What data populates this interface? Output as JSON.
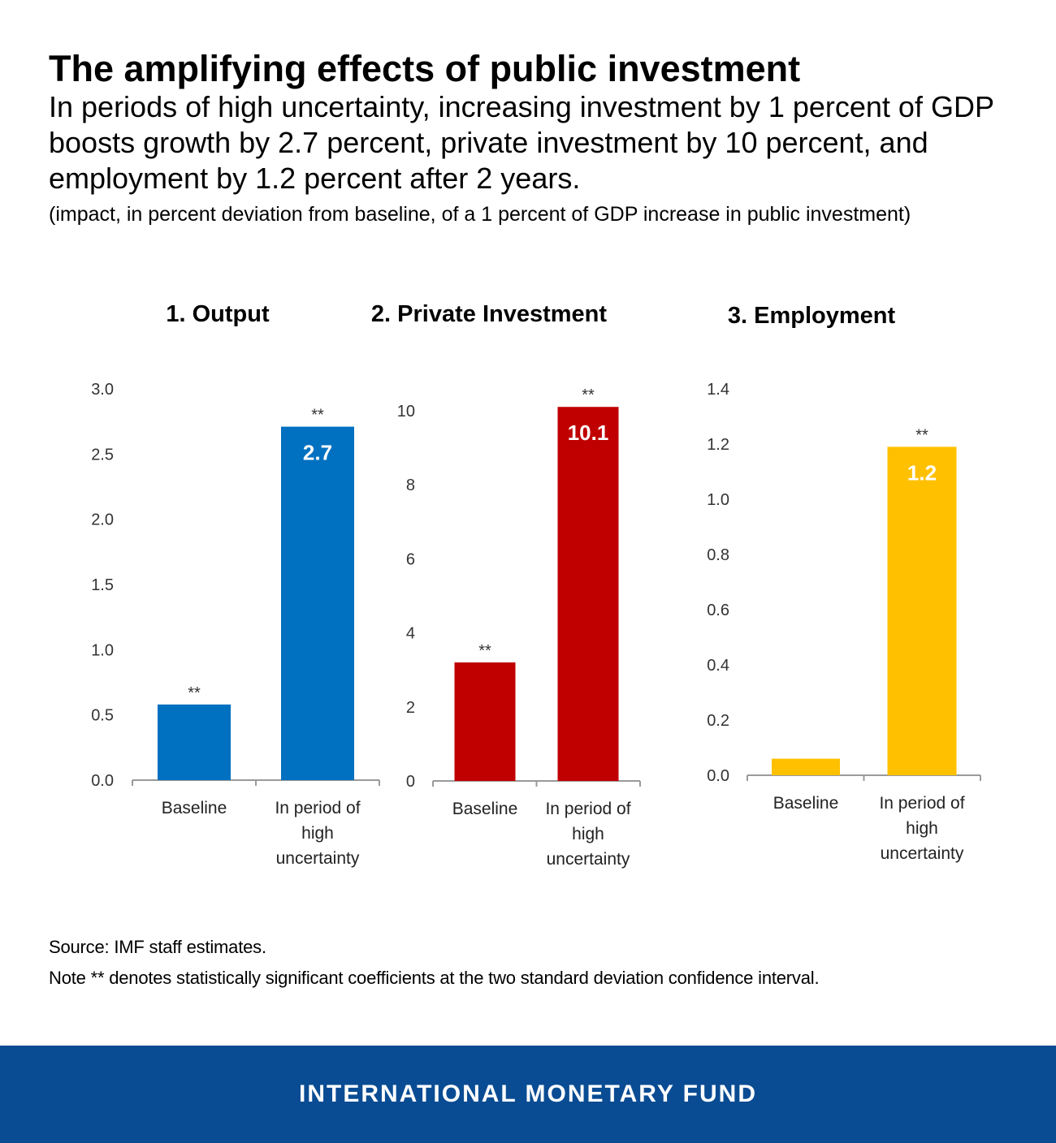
{
  "header": {
    "title": "The amplifying effects of public investment",
    "subtitle": "In periods of high uncertainty, increasing investment by 1 percent of GDP boosts growth by 2.7 percent, private investment by 10 percent, and employment by 1.2 percent after 2 years.",
    "unit_note": "(impact, in percent deviation from baseline, of a 1 percent of GDP increase in public investment)"
  },
  "chart_data": [
    {
      "type": "bar",
      "title": "1. Output",
      "categories": [
        "Baseline",
        "In period of high uncertainty"
      ],
      "category_lines": [
        [
          "Baseline"
        ],
        [
          "In period of",
          "high",
          "uncertainty"
        ]
      ],
      "values": [
        0.58,
        2.71
      ],
      "data_labels": [
        "",
        "2.7"
      ],
      "significance": [
        "**",
        "**"
      ],
      "ylim": [
        0,
        3.0
      ],
      "yticks": [
        0,
        0.5,
        1.0,
        1.5,
        2.0,
        2.5,
        3.0
      ],
      "ytick_labels": [
        "0.0",
        "0.5",
        "1.0",
        "1.5",
        "2.0",
        "2.5",
        "3.0"
      ],
      "color": "#0070C0",
      "xlabel": "",
      "ylabel": "",
      "grid": false
    },
    {
      "type": "bar",
      "title": "2. Private Investment",
      "categories": [
        "Baseline",
        "In period of high uncertainty"
      ],
      "category_lines": [
        [
          "Baseline"
        ],
        [
          "In period of",
          "high",
          "uncertainty"
        ]
      ],
      "values": [
        3.2,
        10.1
      ],
      "data_labels": [
        "",
        "10.1"
      ],
      "significance": [
        "**",
        "**"
      ],
      "ylim": [
        0,
        10.5
      ],
      "yticks": [
        0,
        2,
        4,
        6,
        8,
        10
      ],
      "ytick_labels": [
        "0",
        "2",
        "4",
        "6",
        "8",
        "10"
      ],
      "color": "#C00000",
      "xlabel": "",
      "ylabel": "",
      "grid": false
    },
    {
      "type": "bar",
      "title": "3. Employment",
      "categories": [
        "Baseline",
        "In period of high uncertainty"
      ],
      "category_lines": [
        [
          "Baseline"
        ],
        [
          "In period of",
          "high",
          "uncertainty"
        ]
      ],
      "values": [
        0.06,
        1.19
      ],
      "data_labels": [
        "",
        "1.2"
      ],
      "significance": [
        "",
        "**"
      ],
      "ylim": [
        0,
        1.4
      ],
      "yticks": [
        0,
        0.2,
        0.4,
        0.6,
        0.8,
        1.0,
        1.2,
        1.4
      ],
      "ytick_labels": [
        "0.0",
        "0.2",
        "0.4",
        "0.6",
        "0.8",
        "1.0",
        "1.2",
        "1.4"
      ],
      "color": "#FFC000",
      "xlabel": "",
      "ylabel": "",
      "grid": false
    }
  ],
  "footnotes": {
    "source": "Source: IMF staff estimates.",
    "note": "Note  ** denotes statistically significant coefficients at the two standard deviation confidence interval."
  },
  "footer": {
    "label": "INTERNATIONAL MONETARY FUND",
    "background": "#0A4C93"
  }
}
